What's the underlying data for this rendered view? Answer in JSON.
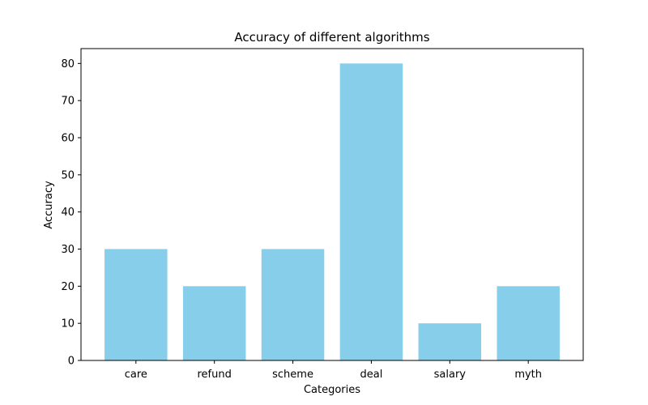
{
  "chart_data": {
    "type": "bar",
    "title": "Accuracy of different algorithms",
    "xlabel": "Categories",
    "ylabel": "Accuracy",
    "categories": [
      "care",
      "refund",
      "scheme",
      "deal",
      "salary",
      "myth"
    ],
    "values": [
      30,
      20,
      30,
      80,
      10,
      20
    ],
    "ylim": [
      0,
      84
    ],
    "yticks": [
      0,
      10,
      20,
      30,
      40,
      50,
      60,
      70,
      80
    ],
    "grid": false,
    "bar_color": "#87CEEB"
  }
}
